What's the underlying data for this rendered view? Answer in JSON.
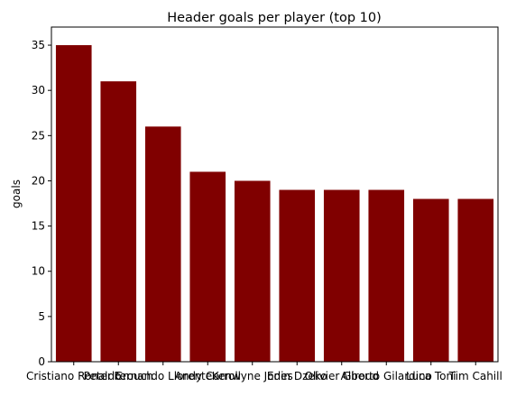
{
  "chart_data": {
    "type": "bar",
    "title": "Header goals per player (top 10)",
    "y_label": "goals",
    "categories": [
      "Cristiano Ronaldo",
      "Peter Crouch",
      "Fernando Llorente",
      "Andy Carroll",
      "Kenwyne Jones",
      "Edin Dzeko",
      "Olivier Giroud",
      "Alberto Gilardino",
      "Luca Toni",
      "Tim Cahill"
    ],
    "values": [
      35,
      31,
      26,
      21,
      20,
      19,
      19,
      19,
      18,
      18
    ],
    "color": "#800000",
    "ylim": [
      0,
      37
    ],
    "yticks": [
      0,
      5,
      10,
      15,
      20,
      25,
      30,
      35
    ],
    "grid": false
  }
}
